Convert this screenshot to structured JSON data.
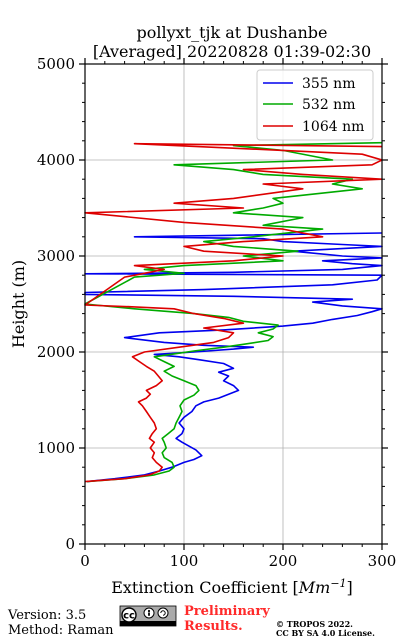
{
  "chart_data": {
    "type": "line",
    "title_line1": "pollyxt_tjk at Dushanbe",
    "title_line2": "[Averaged] 20220828 01:39-02:30",
    "xlabel_text": "Extinction Coefficient [",
    "xlabel_unit": "Mm",
    "xlabel_exp": "−1",
    "xlabel_close": "]",
    "ylabel": "Height (m)",
    "xlim": [
      0,
      300
    ],
    "ylim": [
      0,
      5000
    ],
    "xticks": [
      0,
      100,
      200,
      300
    ],
    "yticks": [
      0,
      1000,
      2000,
      3000,
      4000,
      5000
    ],
    "xtick_labels": [
      "0",
      "100",
      "200",
      "300"
    ],
    "ytick_labels": [
      "0",
      "1000",
      "2000",
      "3000",
      "4000",
      "5000"
    ],
    "grid": true,
    "legend_position": "top-right",
    "series": [
      {
        "name": "355 nm",
        "color": "#0000ee",
        "points": [
          [
            2,
            650
          ],
          [
            30,
            680
          ],
          [
            60,
            720
          ],
          [
            75,
            760
          ],
          [
            88,
            800
          ],
          [
            100,
            850
          ],
          [
            110,
            880
          ],
          [
            118,
            920
          ],
          [
            112,
            980
          ],
          [
            105,
            1020
          ],
          [
            98,
            1060
          ],
          [
            92,
            1100
          ],
          [
            98,
            1150
          ],
          [
            100,
            1200
          ],
          [
            95,
            1260
          ],
          [
            100,
            1320
          ],
          [
            108,
            1380
          ],
          [
            112,
            1440
          ],
          [
            120,
            1480
          ],
          [
            135,
            1520
          ],
          [
            145,
            1560
          ],
          [
            155,
            1600
          ],
          [
            150,
            1650
          ],
          [
            140,
            1700
          ],
          [
            145,
            1750
          ],
          [
            135,
            1790
          ],
          [
            150,
            1830
          ],
          [
            140,
            1880
          ],
          [
            115,
            1920
          ],
          [
            95,
            1950
          ],
          [
            70,
            1975
          ],
          [
            110,
            2000
          ],
          [
            150,
            2030
          ],
          [
            170,
            2050
          ],
          [
            120,
            2070
          ],
          [
            80,
            2100
          ],
          [
            40,
            2150
          ],
          [
            75,
            2200
          ],
          [
            140,
            2230
          ],
          [
            200,
            2270
          ],
          [
            230,
            2300
          ],
          [
            250,
            2340
          ],
          [
            275,
            2380
          ],
          [
            290,
            2420
          ],
          [
            300,
            2450
          ],
          [
            260,
            2480
          ],
          [
            230,
            2520
          ],
          [
            270,
            2550
          ],
          [
            150,
            2580
          ],
          [
            0,
            2600
          ],
          [
            0,
            2620
          ],
          [
            120,
            2650
          ],
          [
            250,
            2700
          ],
          [
            295,
            2750
          ],
          [
            300,
            2800
          ],
          [
            0,
            2815
          ],
          [
            150,
            2830
          ],
          [
            260,
            2860
          ],
          [
            300,
            2900
          ],
          [
            270,
            2920
          ],
          [
            240,
            2950
          ],
          [
            300,
            2980
          ],
          [
            260,
            3000
          ],
          [
            210,
            3050
          ],
          [
            300,
            3100
          ],
          [
            260,
            3120
          ],
          [
            200,
            3150
          ],
          [
            180,
            3180
          ],
          [
            50,
            3200
          ],
          [
            300,
            3240
          ]
        ]
      },
      {
        "name": "532 nm",
        "color": "#00aa00",
        "points": [
          [
            2,
            650
          ],
          [
            40,
            680
          ],
          [
            70,
            720
          ],
          [
            85,
            760
          ],
          [
            90,
            800
          ],
          [
            88,
            850
          ],
          [
            80,
            900
          ],
          [
            78,
            950
          ],
          [
            82,
            1000
          ],
          [
            80,
            1060
          ],
          [
            78,
            1100
          ],
          [
            84,
            1150
          ],
          [
            90,
            1200
          ],
          [
            92,
            1260
          ],
          [
            95,
            1320
          ],
          [
            98,
            1380
          ],
          [
            96,
            1440
          ],
          [
            100,
            1500
          ],
          [
            110,
            1550
          ],
          [
            115,
            1600
          ],
          [
            112,
            1650
          ],
          [
            100,
            1700
          ],
          [
            88,
            1750
          ],
          [
            80,
            1800
          ],
          [
            90,
            1850
          ],
          [
            80,
            1900
          ],
          [
            70,
            1950
          ],
          [
            90,
            1980
          ],
          [
            110,
            2010
          ],
          [
            140,
            2050
          ],
          [
            160,
            2080
          ],
          [
            185,
            2120
          ],
          [
            190,
            2160
          ],
          [
            175,
            2200
          ],
          [
            190,
            2240
          ],
          [
            195,
            2280
          ],
          [
            160,
            2320
          ],
          [
            145,
            2360
          ],
          [
            110,
            2400
          ],
          [
            50,
            2450
          ],
          [
            0,
            2500
          ],
          [
            50,
            2780
          ],
          [
            100,
            2820
          ],
          [
            60,
            2860
          ],
          [
            100,
            2900
          ],
          [
            200,
            2950
          ],
          [
            160,
            3000
          ],
          [
            215,
            3050
          ],
          [
            150,
            3100
          ],
          [
            120,
            3150
          ],
          [
            170,
            3200
          ],
          [
            240,
            3280
          ],
          [
            180,
            3320
          ],
          [
            220,
            3400
          ],
          [
            150,
            3450
          ],
          [
            180,
            3500
          ],
          [
            200,
            3550
          ],
          [
            190,
            3600
          ],
          [
            280,
            3700
          ],
          [
            250,
            3750
          ],
          [
            270,
            3800
          ],
          [
            180,
            3850
          ],
          [
            150,
            3900
          ],
          [
            90,
            3950
          ],
          [
            250,
            4000
          ],
          [
            200,
            4100
          ],
          [
            150,
            4150
          ],
          [
            300,
            4180
          ]
        ]
      },
      {
        "name": "1064 nm",
        "color": "#dd0000",
        "points": [
          [
            0,
            650
          ],
          [
            40,
            680
          ],
          [
            65,
            720
          ],
          [
            75,
            760
          ],
          [
            78,
            800
          ],
          [
            72,
            850
          ],
          [
            68,
            900
          ],
          [
            70,
            950
          ],
          [
            66,
            1000
          ],
          [
            70,
            1060
          ],
          [
            65,
            1100
          ],
          [
            68,
            1150
          ],
          [
            72,
            1200
          ],
          [
            70,
            1260
          ],
          [
            66,
            1320
          ],
          [
            62,
            1380
          ],
          [
            58,
            1440
          ],
          [
            54,
            1480
          ],
          [
            62,
            1520
          ],
          [
            66,
            1560
          ],
          [
            62,
            1600
          ],
          [
            72,
            1650
          ],
          [
            78,
            1700
          ],
          [
            74,
            1750
          ],
          [
            70,
            1800
          ],
          [
            62,
            1850
          ],
          [
            55,
            1900
          ],
          [
            48,
            1950
          ],
          [
            60,
            2000
          ],
          [
            95,
            2050
          ],
          [
            130,
            2100
          ],
          [
            145,
            2150
          ],
          [
            150,
            2200
          ],
          [
            120,
            2250
          ],
          [
            160,
            2300
          ],
          [
            140,
            2350
          ],
          [
            110,
            2400
          ],
          [
            90,
            2450
          ],
          [
            50,
            2470
          ],
          [
            0,
            2490
          ],
          [
            40,
            2780
          ],
          [
            60,
            2820
          ],
          [
            80,
            2860
          ],
          [
            50,
            2900
          ],
          [
            150,
            2950
          ],
          [
            200,
            3000
          ],
          [
            120,
            3050
          ],
          [
            100,
            3100
          ],
          [
            160,
            3150
          ],
          [
            240,
            3200
          ],
          [
            200,
            3280
          ],
          [
            100,
            3350
          ],
          [
            0,
            3450
          ],
          [
            160,
            3500
          ],
          [
            90,
            3550
          ],
          [
            150,
            3600
          ],
          [
            220,
            3700
          ],
          [
            180,
            3750
          ],
          [
            300,
            3800
          ],
          [
            220,
            3850
          ],
          [
            160,
            3900
          ],
          [
            290,
            3950
          ],
          [
            300,
            4000
          ],
          [
            280,
            4060
          ],
          [
            200,
            4100
          ],
          [
            50,
            4170
          ],
          [
            300,
            4140
          ]
        ]
      }
    ]
  },
  "footer": {
    "version": "Version: 3.5",
    "method": "Method: Raman",
    "preliminary_line1": "Preliminary",
    "preliminary_line2": "Results.",
    "copyright_line1": "© TROPOS 2022.",
    "copyright_line2": "CC BY SA 4.0 License.",
    "cc_icons": [
      "cc-icon",
      "by-icon",
      "sa-icon"
    ]
  }
}
